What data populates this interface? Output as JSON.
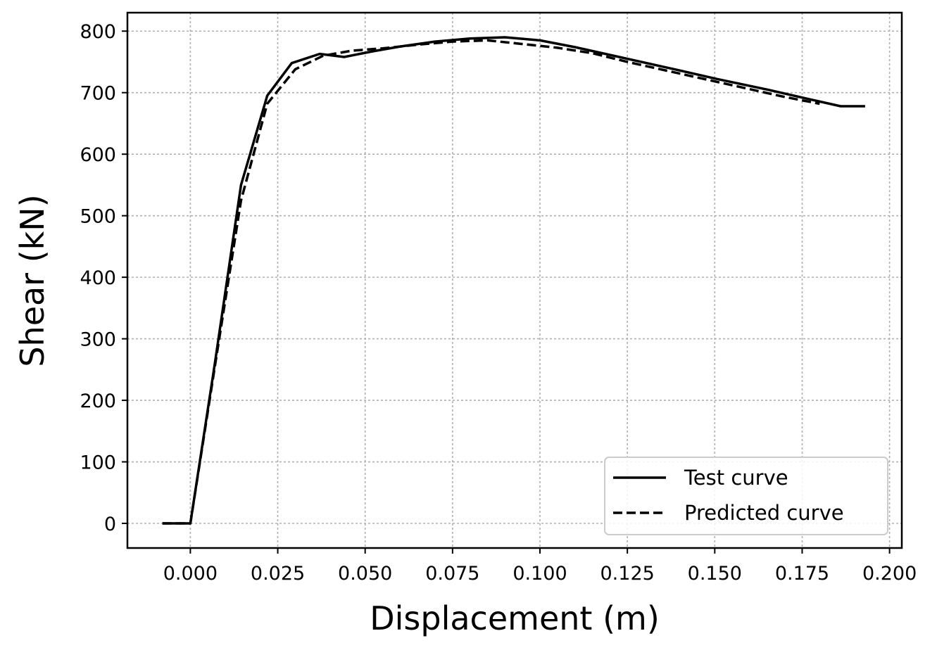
{
  "chart_data": {
    "type": "line",
    "title": "",
    "xlabel": "Displacement (m)",
    "ylabel": "Shear (kN)",
    "xlim": [
      -0.018,
      0.2035
    ],
    "ylim": [
      -40,
      830
    ],
    "grid": true,
    "legend_position": "bottom-right",
    "x_ticks": [
      "0.000",
      "0.025",
      "0.050",
      "0.075",
      "0.100",
      "0.125",
      "0.150",
      "0.175",
      "0.200"
    ],
    "y_ticks": [
      "0",
      "100",
      "200",
      "300",
      "400",
      "500",
      "600",
      "700",
      "800"
    ],
    "series": [
      {
        "name": "Test curve",
        "style": "solid",
        "color": "#000000",
        "x": [
          -0.008,
          0.0,
          0.007,
          0.0145,
          0.022,
          0.029,
          0.037,
          0.044,
          0.052,
          0.06,
          0.07,
          0.08,
          0.09,
          0.1,
          0.11,
          0.125,
          0.14,
          0.15,
          0.165,
          0.175,
          0.186,
          0.193
        ],
        "y": [
          0,
          0,
          260,
          550,
          695,
          748,
          763,
          758,
          767,
          775,
          783,
          788,
          790,
          785,
          774,
          755,
          736,
          723,
          705,
          692,
          678,
          678
        ]
      },
      {
        "name": "Predicted curve",
        "style": "dashed",
        "color": "#000000",
        "x": [
          -0.008,
          0.0,
          0.007,
          0.0145,
          0.022,
          0.03,
          0.038,
          0.046,
          0.055,
          0.065,
          0.075,
          0.085,
          0.095,
          0.105,
          0.115,
          0.125,
          0.14,
          0.155,
          0.17,
          0.18
        ],
        "y": [
          0,
          0,
          255,
          525,
          682,
          738,
          760,
          768,
          772,
          778,
          783,
          785,
          779,
          773,
          764,
          750,
          731,
          712,
          693,
          682
        ]
      }
    ]
  }
}
